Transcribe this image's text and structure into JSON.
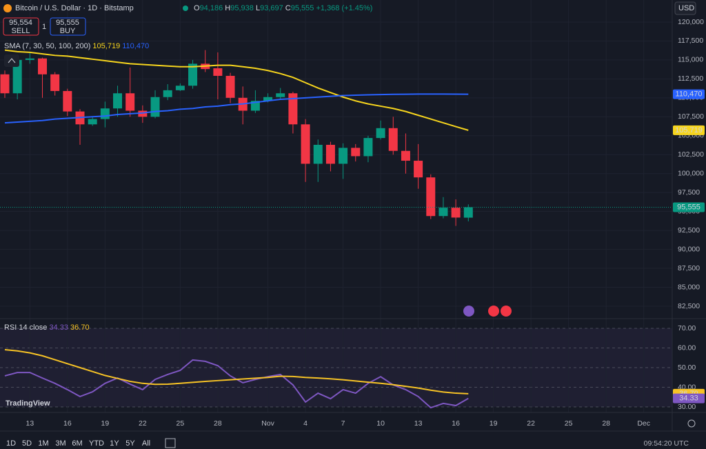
{
  "header": {
    "title": "Bitcoin / U.S. Dollar · 1D · Bitstamp",
    "ohlc": [
      {
        "key": "O",
        "value": "94,186"
      },
      {
        "key": "H",
        "value": "95,938"
      },
      {
        "key": "L",
        "value": "93,697"
      },
      {
        "key": "C",
        "value": "95,555"
      }
    ],
    "change": "+1,368 (+1.45%)"
  },
  "trade": {
    "sell_price": "95,554",
    "sell": "SELL",
    "quantity": "1",
    "buy_price": "95,555",
    "buy": "BUY"
  },
  "toolbar": {
    "currency": "USD",
    "ranges": [
      "1D",
      "5D",
      "1M",
      "3M",
      "6M",
      "YTD",
      "1Y",
      "5Y",
      "All"
    ],
    "time": "09:54:20 UTC"
  },
  "logo": "TradingView",
  "chart_data": [
    {
      "type": "candlestick",
      "up_color": "#089981",
      "down_color": "#f23645",
      "open": [
        113100,
        110600,
        115000,
        115200,
        113100,
        110900,
        108200,
        106500,
        107200,
        108600,
        110600,
        108300,
        107500,
        110100,
        111000,
        111600,
        114500,
        113900,
        112900,
        110000,
        108300,
        109600,
        110100,
        110600,
        106500,
        101300,
        103800,
        101300,
        103400,
        102300,
        104700,
        106000,
        103000,
        101700,
        99500,
        94400,
        95500,
        94186
      ],
      "high": [
        113600,
        115300,
        115900,
        115300,
        113400,
        111200,
        108500,
        107500,
        109500,
        111600,
        114000,
        109000,
        111000,
        111800,
        111900,
        115000,
        116300,
        116000,
        113300,
        111500,
        111000,
        110600,
        111300,
        110800,
        107200,
        104500,
        104200,
        104000,
        103900,
        105000,
        107000,
        107500,
        105300,
        103900,
        99900,
        96900,
        96600,
        95938
      ],
      "low": [
        110000,
        109800,
        114500,
        110000,
        110300,
        107600,
        103800,
        106300,
        106100,
        107500,
        107500,
        106700,
        107300,
        109700,
        110900,
        111200,
        113400,
        109800,
        109300,
        106500,
        108000,
        109400,
        109800,
        105300,
        98900,
        98900,
        100300,
        99300,
        101600,
        101500,
        104500,
        102500,
        100000,
        98000,
        94000,
        94100,
        93100,
        93697
      ],
      "close": [
        110600,
        115000,
        115200,
        113100,
        110900,
        108200,
        106500,
        107200,
        108600,
        110600,
        108300,
        107500,
        110100,
        111000,
        111600,
        114500,
        113800,
        112900,
        110000,
        108300,
        109600,
        110100,
        110600,
        106500,
        101300,
        103800,
        101300,
        103400,
        102300,
        104700,
        106000,
        103000,
        101700,
        99500,
        94400,
        95500,
        94200,
        95555
      ],
      "close_label": "95,555",
      "indicator": "SMA (7, 30, 50, 100, 200)",
      "series": [
        {
          "color": "#f7d51d",
          "last_label": "105,719",
          "values": [
            116300,
            116100,
            116000,
            115800,
            115600,
            115500,
            115300,
            115100,
            114900,
            114700,
            114500,
            114400,
            114300,
            114200,
            114100,
            114100,
            114200,
            114300,
            114300,
            114100,
            113900,
            113600,
            113200,
            112700,
            112000,
            111300,
            110700,
            110100,
            109600,
            109200,
            108900,
            108600,
            108200,
            107700,
            107200,
            106700,
            106200,
            105719
          ]
        },
        {
          "color": "#2962ff",
          "last_label": "110,470",
          "values": [
            106700,
            106800,
            106900,
            107000,
            107200,
            107300,
            107400,
            107500,
            107600,
            107800,
            107900,
            108000,
            108200,
            108300,
            108500,
            108600,
            108800,
            108900,
            109100,
            109200,
            109400,
            109600,
            109800,
            109900,
            110000,
            110100,
            110200,
            110300,
            110350,
            110400,
            110430,
            110460,
            110480,
            110500,
            110500,
            110500,
            110490,
            110470
          ]
        }
      ],
      "ylim": [
        80860,
        122910
      ],
      "yticks": [
        {
          "value": 82500,
          "label": "82,500"
        },
        {
          "value": 85000,
          "label": "85,000"
        },
        {
          "value": 87500,
          "label": "87,500"
        },
        {
          "value": 90000,
          "label": "90,000"
        },
        {
          "value": 92500,
          "label": "92,500"
        },
        {
          "value": 95000,
          "label": "95,000"
        },
        {
          "value": 97500,
          "label": "97,500"
        },
        {
          "value": 100000,
          "label": "100,000"
        },
        {
          "value": 102500,
          "label": "102,500"
        },
        {
          "value": 105000,
          "label": "105,000"
        },
        {
          "value": 107500,
          "label": "107,500"
        },
        {
          "value": 110000,
          "label": "110,000"
        },
        {
          "value": 112500,
          "label": "112,500"
        },
        {
          "value": 115000,
          "label": "115,000"
        },
        {
          "value": 117500,
          "label": "117,500"
        },
        {
          "value": 120000,
          "label": "120,000"
        }
      ],
      "grid": true
    },
    {
      "type": "line",
      "indicator": "RSI 14 close",
      "series": [
        {
          "color": "#7e57c2",
          "last_label": "34.33",
          "values": [
            45.8,
            47.5,
            47.5,
            44.7,
            42,
            38.8,
            35.3,
            37.7,
            42,
            44.7,
            41.6,
            38.8,
            44,
            46.5,
            48.6,
            53.9,
            53.2,
            51,
            45.8,
            42.3,
            44,
            45.4,
            46.5,
            41.2,
            32.5,
            37,
            34.2,
            38.8,
            37,
            42,
            45.4,
            41.2,
            38.8,
            35.3,
            29.6,
            31.8,
            30.7,
            34.33
          ]
        },
        {
          "color": "#f7c325",
          "last_label": "36.70",
          "values": [
            59.1,
            58.5,
            57.5,
            56,
            54,
            52,
            50,
            48,
            46,
            44.5,
            43,
            42,
            41.5,
            41.6,
            42,
            42.5,
            43,
            43.4,
            43.8,
            44.2,
            44.6,
            45,
            45.6,
            45.5,
            45,
            44.7,
            44.3,
            43.8,
            43.2,
            42.6,
            42,
            41.3,
            40.5,
            39.6,
            38.5,
            37.6,
            37,
            36.7
          ]
        }
      ],
      "ylim": [
        27.2,
        74.9
      ],
      "yticks": [
        {
          "value": 30,
          "label": "30.00"
        },
        {
          "value": 40,
          "label": "40.00"
        },
        {
          "value": 50,
          "label": "50.00"
        },
        {
          "value": 60,
          "label": "60.00"
        },
        {
          "value": 70,
          "label": "70.00"
        }
      ],
      "xticks": [
        "13",
        "16",
        "19",
        "22",
        "25",
        "28",
        "Nov",
        "4",
        "7",
        "10",
        "13",
        "16",
        "19",
        "22",
        "25",
        "28",
        "Dec"
      ]
    }
  ]
}
